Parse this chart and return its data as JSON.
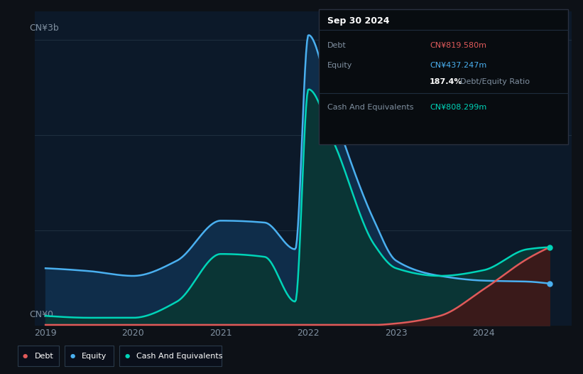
{
  "bg_color": "#0d1117",
  "plot_bg_color": "#0c1929",
  "debt_color": "#e05a5a",
  "equity_color": "#4ab0f0",
  "cash_color": "#00d4b8",
  "equity_fill": "#0f2d4a",
  "cash_fill": "#0a3535",
  "debt_fill": "#3a1a1a",
  "grid_color": "#1e2d3d",
  "text_color": "#8090a0",
  "ylabel_3b": "CN¥3b",
  "ylabel_0": "CN¥0",
  "xlabels": [
    "2019",
    "2020",
    "2021",
    "2022",
    "2023",
    "2024"
  ],
  "tooltip": {
    "date": "Sep 30 2024",
    "debt_label": "Debt",
    "debt_value": "CN¥819.580m",
    "equity_label": "Equity",
    "equity_value": "CN¥437.247m",
    "ratio_value": "187.4%",
    "ratio_label": "Debt/Equity Ratio",
    "cash_label": "Cash And Equivalents",
    "cash_value": "CN¥808.299m"
  },
  "x_knots": [
    2019.0,
    2019.5,
    2020.0,
    2020.5,
    2021.0,
    2021.5,
    2021.85,
    2022.0,
    2022.3,
    2022.75,
    2023.0,
    2023.5,
    2024.0,
    2024.5,
    2024.75
  ],
  "equity_knots": [
    0.6,
    0.57,
    0.52,
    0.68,
    1.1,
    1.08,
    0.8,
    3.05,
    2.2,
    1.1,
    0.68,
    0.52,
    0.47,
    0.46,
    0.44
  ],
  "cash_knots": [
    0.1,
    0.08,
    0.08,
    0.25,
    0.75,
    0.72,
    0.25,
    2.48,
    1.9,
    0.85,
    0.6,
    0.52,
    0.58,
    0.8,
    0.82
  ],
  "debt_knots": [
    0.005,
    0.005,
    0.005,
    0.005,
    0.005,
    0.005,
    0.005,
    0.005,
    0.005,
    0.005,
    0.02,
    0.1,
    0.38,
    0.7,
    0.82
  ],
  "ylim": [
    0,
    3.3
  ],
  "xlim": [
    2018.88,
    2025.0
  ]
}
